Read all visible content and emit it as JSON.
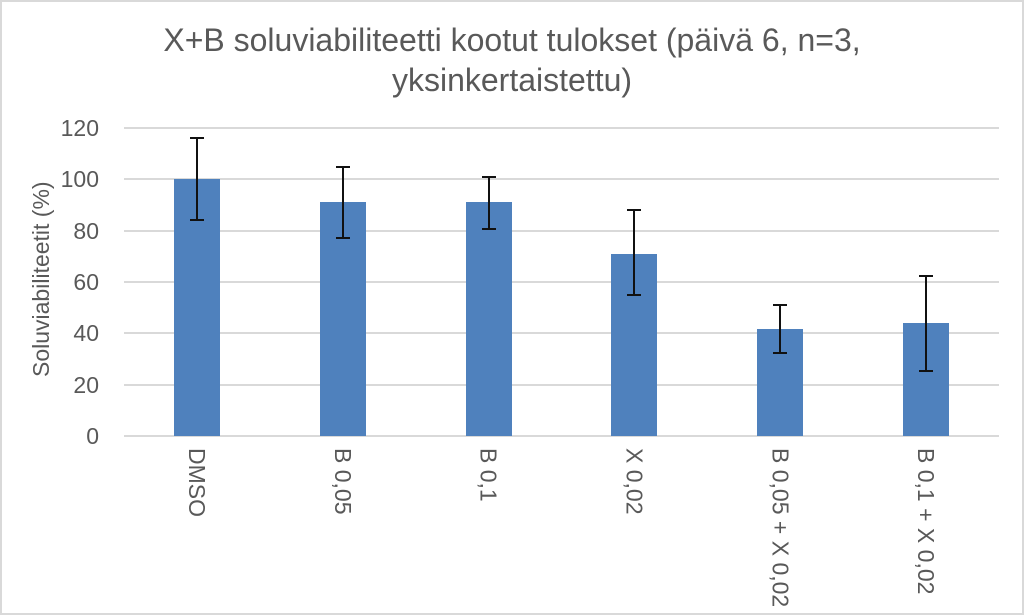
{
  "chart_data": {
    "type": "bar",
    "title": "X+B soluviabiliteetti kootut tulokset (päivä 6, n=3, yksinkertaistettu)",
    "title_lines": [
      "X+B soluviabiliteetti kootut tulokset (päivä 6, n=3,",
      "yksinkertaistettu)"
    ],
    "xlabel": "",
    "ylabel": "Soluviabiliteetit (%)",
    "categories": [
      "DMSO",
      "B 0,05",
      "B 0,1",
      "X 0,02",
      "B 0,05 + X 0,02",
      "B 0,1 + X 0,02"
    ],
    "values": [
      100,
      91,
      91,
      71,
      41.5,
      44
    ],
    "error_up": [
      16,
      14,
      10,
      17,
      9.5,
      18.5
    ],
    "error_down": [
      16,
      14,
      10.5,
      16,
      9,
      18.5
    ],
    "ylim": [
      0,
      120
    ],
    "y_ticks": [
      0,
      20,
      40,
      60,
      80,
      100,
      120
    ],
    "grid": true,
    "legend": "none",
    "bar_color": "#4f81bd",
    "error_color": "#111111",
    "text_color": "#595959",
    "grid_color": "#d9d9d9"
  }
}
